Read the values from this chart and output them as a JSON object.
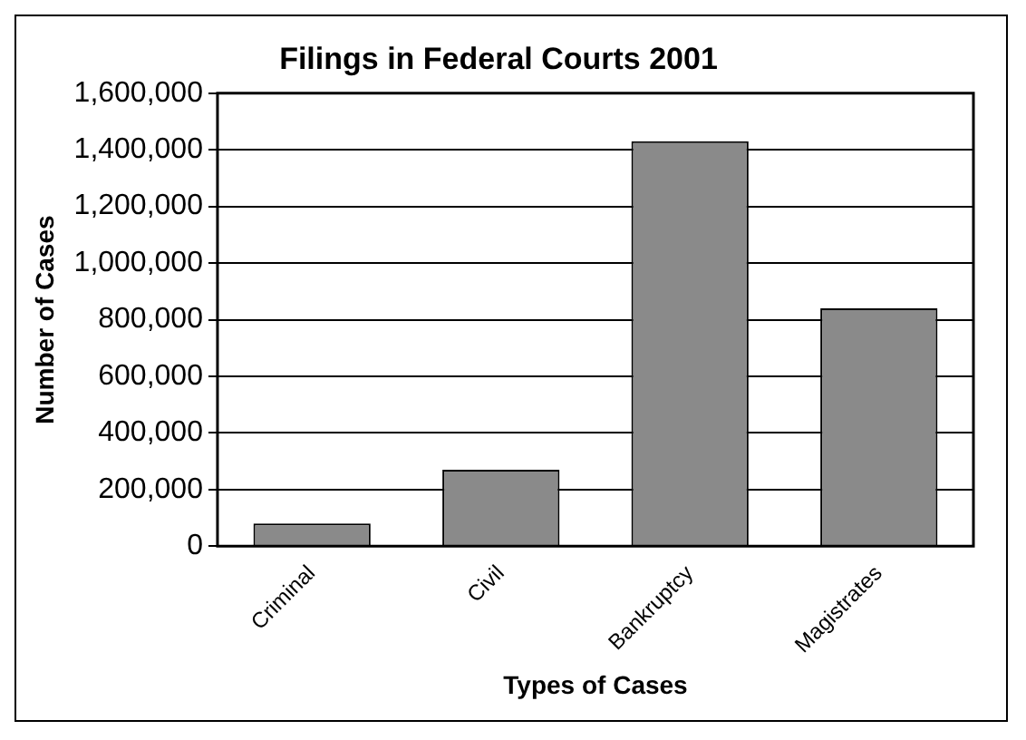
{
  "chart_data": {
    "type": "bar",
    "title": "Filings in Federal Courts 2001",
    "xlabel": "Types of Cases",
    "ylabel": "Number of Cases",
    "categories": [
      "Criminal",
      "Civil",
      "Bankruptcy",
      "Magistrates"
    ],
    "values": [
      80000,
      270000,
      1430000,
      840000
    ],
    "color": "#8a8a8a",
    "ylim": [
      0,
      1600000
    ],
    "yticks": [
      0,
      {
        "value": 200000,
        "label": "200,000"
      },
      {
        "value": 400000,
        "label": "400,000"
      },
      {
        "value": 600000,
        "label": "600,000"
      },
      {
        "value": 800000,
        "label": "800,000"
      },
      {
        "value": 1000000,
        "label": "1,000,000"
      },
      {
        "value": 1200000,
        "label": "1,200,000"
      },
      {
        "value": 1400000,
        "label": "1,400,000"
      },
      {
        "value": 1600000,
        "label": "1,600,000"
      }
    ],
    "grid": "y",
    "legend": false
  }
}
